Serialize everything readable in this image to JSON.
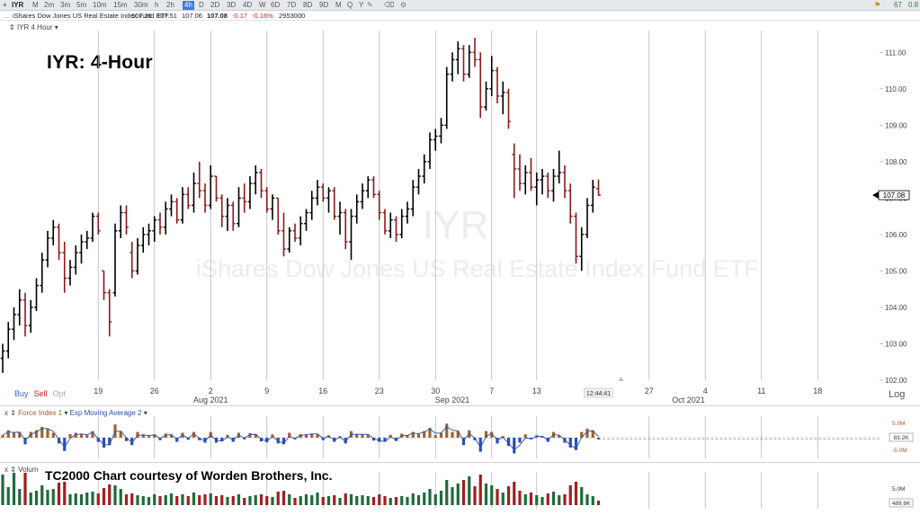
{
  "toolbar": {
    "symbol": "IYR",
    "timeframes": [
      "M",
      "2m",
      "3m",
      "5m",
      "10m",
      "15m",
      "30m",
      "h",
      "2h",
      "4h",
      "D",
      "2D",
      "3D",
      "4D",
      "W",
      "6D",
      "7D",
      "8D",
      "9D",
      "M",
      "Q",
      "Y"
    ],
    "active_timeframe": "4h",
    "right_a": "67",
    "right_b": "0.8"
  },
  "quote": {
    "name": "iShares Dow Jones US Real Estate Index Fund ETF",
    "open": "107.26",
    "high": "107.51",
    "low": "107.06",
    "close": "107.08",
    "change": "-0.17",
    "pct": "-0.16%",
    "volume": "2953000"
  },
  "price_pane": {
    "label": "IYR 4 Hour",
    "title_overlay": "IYR:  4-Hour",
    "watermark_symbol": "IYR",
    "watermark_name": "iShares Dow Jones US Real Estate Index Fund ETF",
    "price_tag": "107.08",
    "buy": "Buy",
    "sell": "Sell",
    "opt": "Opt",
    "log": "Log",
    "time_badge": "12:44:41"
  },
  "indicator_pane": {
    "label_a": "Force Index 1",
    "label_b": "Exp Moving Average 2",
    "axis_top": "5.0M",
    "axis_mid": "83.2K",
    "axis_bottom": "-5.0M"
  },
  "volume_pane": {
    "label": "Volum",
    "courtesy": "TC2000 Chart courtesy of Worden Brothers, Inc.",
    "axis_top": "5.0M",
    "axis_value": "489.6K"
  },
  "colors": {
    "up": "#000000",
    "down": "#8b1a1a",
    "grid": "#b8b8b8",
    "volume_up": "#1e6b3a",
    "volume_down": "#a31e1e"
  },
  "chart_data": {
    "type": "bar",
    "title": "IYR:  4-Hour",
    "xlabel": "",
    "ylabel": "",
    "ylim": [
      102.0,
      111.5
    ],
    "yticks": [
      "102.00",
      "103.00",
      "104.00",
      "105.00",
      "106.00",
      "107.00",
      "108.00",
      "109.00",
      "110.00",
      "111.00"
    ],
    "xticks": [
      {
        "label": "19",
        "i": 17
      },
      {
        "label": "26",
        "i": 27
      },
      {
        "label": "2",
        "i": 37
      },
      {
        "label": "Aug 2021",
        "i": 37,
        "month": true
      },
      {
        "label": "9",
        "i": 47
      },
      {
        "label": "16",
        "i": 57
      },
      {
        "label": "23",
        "i": 67
      },
      {
        "label": "30",
        "i": 77
      },
      {
        "label": "Sep 2021",
        "i": 80,
        "month": true
      },
      {
        "label": "7",
        "i": 87
      },
      {
        "label": "13",
        "i": 95
      },
      {
        "label": "27",
        "i": 115
      },
      {
        "label": "4",
        "i": 125
      },
      {
        "label": "Oct 2021",
        "i": 122,
        "month": true
      },
      {
        "label": "11",
        "i": 135
      },
      {
        "label": "18",
        "i": 145
      }
    ],
    "ohlc": [
      [
        102.6,
        103.0,
        102.2,
        102.8
      ],
      [
        102.8,
        103.6,
        102.6,
        103.4
      ],
      [
        103.4,
        104.0,
        103.1,
        103.8
      ],
      [
        103.8,
        104.5,
        103.5,
        104.2
      ],
      [
        104.2,
        104.4,
        103.2,
        103.5
      ],
      [
        103.5,
        104.2,
        103.3,
        104.0
      ],
      [
        104.0,
        104.8,
        103.9,
        104.6
      ],
      [
        104.6,
        105.5,
        104.4,
        105.3
      ],
      [
        105.3,
        106.1,
        105.1,
        105.9
      ],
      [
        105.9,
        106.4,
        105.7,
        106.2
      ],
      [
        106.2,
        106.3,
        105.3,
        105.5
      ],
      [
        105.5,
        105.8,
        104.4,
        104.8
      ],
      [
        104.8,
        105.3,
        104.6,
        105.1
      ],
      [
        105.1,
        105.7,
        104.9,
        105.5
      ],
      [
        105.5,
        106.0,
        105.2,
        105.8
      ],
      [
        105.8,
        106.1,
        105.6,
        105.9
      ],
      [
        105.9,
        106.6,
        105.8,
        106.5
      ],
      [
        106.5,
        106.6,
        106.0,
        106.1
      ],
      [
        105.0,
        105.0,
        104.2,
        104.4
      ],
      [
        104.4,
        104.5,
        103.2,
        103.6
      ],
      [
        104.4,
        106.3,
        104.3,
        106.1
      ],
      [
        106.1,
        106.8,
        105.9,
        106.6
      ],
      [
        106.6,
        106.8,
        106.0,
        106.2
      ],
      [
        105.5,
        105.8,
        104.8,
        105.0
      ],
      [
        105.0,
        105.9,
        104.9,
        105.7
      ],
      [
        105.7,
        106.2,
        105.5,
        106.0
      ],
      [
        106.0,
        106.3,
        105.7,
        106.1
      ],
      [
        106.1,
        106.5,
        105.8,
        106.4
      ],
      [
        106.4,
        106.6,
        106.0,
        106.2
      ],
      [
        106.2,
        106.9,
        106.0,
        106.7
      ],
      [
        106.7,
        107.1,
        106.5,
        106.9
      ],
      [
        106.9,
        107.0,
        106.3,
        106.4
      ],
      [
        106.4,
        107.3,
        106.3,
        107.1
      ],
      [
        107.1,
        107.3,
        106.7,
        106.8
      ],
      [
        106.8,
        107.7,
        106.6,
        107.4
      ],
      [
        107.4,
        108.0,
        107.0,
        107.2
      ],
      [
        107.2,
        107.4,
        106.6,
        106.8
      ],
      [
        106.8,
        107.9,
        106.7,
        107.6
      ],
      [
        107.6,
        107.6,
        106.9,
        107.0
      ],
      [
        107.0,
        107.1,
        106.2,
        106.5
      ],
      [
        106.5,
        107.0,
        106.1,
        106.8
      ],
      [
        106.8,
        106.9,
        106.1,
        106.3
      ],
      [
        106.3,
        107.3,
        106.2,
        107.0
      ],
      [
        107.0,
        107.4,
        106.6,
        106.9
      ],
      [
        106.9,
        107.6,
        106.7,
        107.4
      ],
      [
        107.4,
        107.9,
        107.1,
        107.7
      ],
      [
        107.7,
        107.8,
        107.0,
        107.2
      ],
      [
        107.2,
        107.3,
        106.6,
        106.7
      ],
      [
        106.7,
        107.1,
        106.4,
        107.0
      ],
      [
        107.0,
        107.0,
        106.0,
        106.1
      ],
      [
        106.1,
        106.6,
        105.4,
        105.6
      ],
      [
        105.6,
        106.2,
        105.5,
        106.1
      ],
      [
        106.1,
        106.3,
        105.8,
        105.9
      ],
      [
        105.9,
        106.5,
        105.7,
        106.3
      ],
      [
        106.3,
        106.7,
        106.1,
        106.6
      ],
      [
        106.6,
        107.2,
        106.4,
        107.0
      ],
      [
        107.0,
        107.5,
        106.8,
        107.3
      ],
      [
        107.3,
        107.4,
        106.9,
        107.0
      ],
      [
        107.0,
        107.3,
        106.6,
        107.2
      ],
      [
        107.2,
        107.3,
        106.4,
        106.5
      ],
      [
        106.5,
        106.9,
        106.0,
        106.6
      ],
      [
        106.6,
        106.7,
        105.6,
        105.8
      ],
      [
        105.8,
        106.7,
        105.3,
        106.5
      ],
      [
        106.5,
        107.1,
        106.3,
        106.9
      ],
      [
        106.9,
        107.4,
        106.7,
        107.2
      ],
      [
        107.2,
        107.6,
        107.0,
        107.5
      ],
      [
        107.5,
        107.6,
        107.0,
        107.1
      ],
      [
        107.1,
        107.2,
        106.4,
        106.6
      ],
      [
        106.6,
        106.7,
        106.0,
        106.1
      ],
      [
        106.1,
        106.6,
        105.9,
        106.4
      ],
      [
        106.4,
        106.5,
        105.8,
        106.0
      ],
      [
        106.0,
        106.7,
        105.9,
        106.5
      ],
      [
        106.5,
        106.9,
        106.3,
        106.7
      ],
      [
        106.7,
        107.5,
        106.5,
        107.3
      ],
      [
        107.3,
        107.8,
        107.1,
        107.6
      ],
      [
        107.6,
        108.2,
        107.4,
        108.0
      ],
      [
        108.0,
        108.8,
        107.8,
        108.6
      ],
      [
        108.6,
        108.9,
        108.3,
        108.7
      ],
      [
        108.7,
        109.2,
        108.5,
        109.0
      ],
      [
        109.0,
        110.6,
        108.9,
        110.4
      ],
      [
        110.4,
        111.0,
        110.2,
        110.8
      ],
      [
        110.8,
        111.3,
        110.4,
        111.1
      ],
      [
        111.1,
        111.2,
        110.2,
        110.4
      ],
      [
        110.4,
        111.2,
        110.3,
        111.0
      ],
      [
        111.0,
        111.4,
        110.6,
        110.8
      ],
      [
        110.8,
        111.0,
        109.2,
        109.5
      ],
      [
        109.5,
        110.2,
        109.4,
        110.0
      ],
      [
        110.0,
        110.9,
        109.8,
        110.5
      ],
      [
        110.5,
        110.6,
        109.6,
        109.8
      ],
      [
        109.8,
        110.2,
        109.3,
        109.9
      ],
      [
        109.9,
        110.0,
        108.9,
        109.1
      ],
      [
        108.2,
        108.5,
        107.0,
        107.8
      ],
      [
        107.8,
        108.2,
        107.2,
        107.4
      ],
      [
        107.4,
        107.9,
        107.1,
        107.7
      ],
      [
        107.7,
        108.1,
        107.2,
        107.3
      ],
      [
        107.3,
        107.7,
        106.8,
        107.5
      ],
      [
        107.5,
        107.8,
        107.1,
        107.6
      ],
      [
        107.6,
        107.7,
        107.0,
        107.2
      ],
      [
        107.2,
        107.8,
        106.9,
        107.6
      ],
      [
        107.6,
        108.3,
        107.4,
        107.7
      ],
      [
        107.7,
        107.9,
        107.0,
        107.2
      ],
      [
        107.2,
        107.4,
        106.3,
        106.5
      ],
      [
        106.5,
        106.6,
        105.2,
        105.4
      ],
      [
        105.4,
        106.2,
        105.0,
        106.0
      ],
      [
        106.0,
        107.0,
        105.9,
        106.8
      ],
      [
        106.8,
        107.5,
        106.6,
        107.3
      ],
      [
        107.26,
        107.51,
        107.06,
        107.08
      ]
    ],
    "force_index": [
      0.6,
      1.8,
      1.2,
      1.4,
      -1.6,
      1.4,
      1.8,
      2.6,
      2.2,
      1.2,
      -1.4,
      -3.2,
      0.9,
      1.2,
      1.0,
      0.6,
      1.6,
      -1.0,
      -2.4,
      -1.8,
      3.2,
      1.6,
      -0.8,
      -1.8,
      1.4,
      0.8,
      0.4,
      0.8,
      -0.6,
      1.0,
      0.8,
      -1.0,
      1.2,
      -0.5,
      1.4,
      -0.6,
      -1.2,
      1.4,
      -1.2,
      -0.9,
      0.7,
      -1.0,
      1.2,
      -0.4,
      1.1,
      0.9,
      -0.9,
      -1.1,
      0.8,
      -1.4,
      -1.6,
      1.2,
      -0.4,
      0.9,
      0.8,
      1.0,
      0.9,
      -0.6,
      0.6,
      -1.0,
      0.4,
      -1.4,
      1.6,
      0.9,
      0.8,
      0.8,
      -0.7,
      -1.0,
      -1.0,
      0.7,
      -0.8,
      1.0,
      0.6,
      1.4,
      0.9,
      1.6,
      2.4,
      0.6,
      1.2,
      3.4,
      1.4,
      1.6,
      -1.8,
      1.8,
      -0.6,
      -3.4,
      1.6,
      1.4,
      -1.4,
      0.4,
      -2.0,
      -3.8,
      -1.2,
      0.8,
      -0.4,
      0.6,
      0.4,
      -1.0,
      1.4,
      0.6,
      -1.2,
      -2.4,
      -3.0,
      1.4,
      2.2,
      1.8,
      -0.4
    ],
    "volume": [
      3.4,
      2.0,
      3.6,
      1.8,
      3.6,
      1.4,
      1.6,
      2.2,
      1.7,
      1.8,
      2.5,
      2.6,
      1.2,
      1.3,
      1.2,
      1.4,
      1.5,
      1.3,
      1.9,
      2.3,
      2.2,
      1.8,
      1.2,
      1.3,
      1.1,
      1.0,
      0.9,
      1.2,
      1.0,
      1.1,
      1.3,
      1.0,
      1.2,
      1.0,
      1.4,
      1.1,
      1.2,
      1.3,
      1.0,
      1.1,
      0.9,
      1.0,
      1.2,
      0.8,
      1.0,
      1.1,
      1.2,
      1.0,
      0.9,
      1.5,
      1.6,
      1.2,
      0.8,
      1.0,
      1.2,
      1.1,
      1.4,
      0.9,
      1.0,
      1.1,
      0.8,
      1.3,
      1.2,
      1.0,
      1.1,
      1.0,
      0.9,
      1.2,
      1.0,
      0.8,
      0.9,
      1.0,
      0.9,
      1.3,
      1.1,
      1.4,
      1.8,
      1.2,
      1.6,
      2.8,
      2.0,
      2.4,
      2.8,
      3.2,
      2.1,
      3.4,
      2.4,
      2.2,
      1.8,
      1.4,
      2.1,
      2.6,
      1.6,
      1.2,
      1.4,
      1.1,
      0.9,
      1.3,
      1.5,
      1.1,
      1.2,
      2.2,
      2.6,
      2.0,
      1.2,
      1.0,
      0.5
    ]
  }
}
